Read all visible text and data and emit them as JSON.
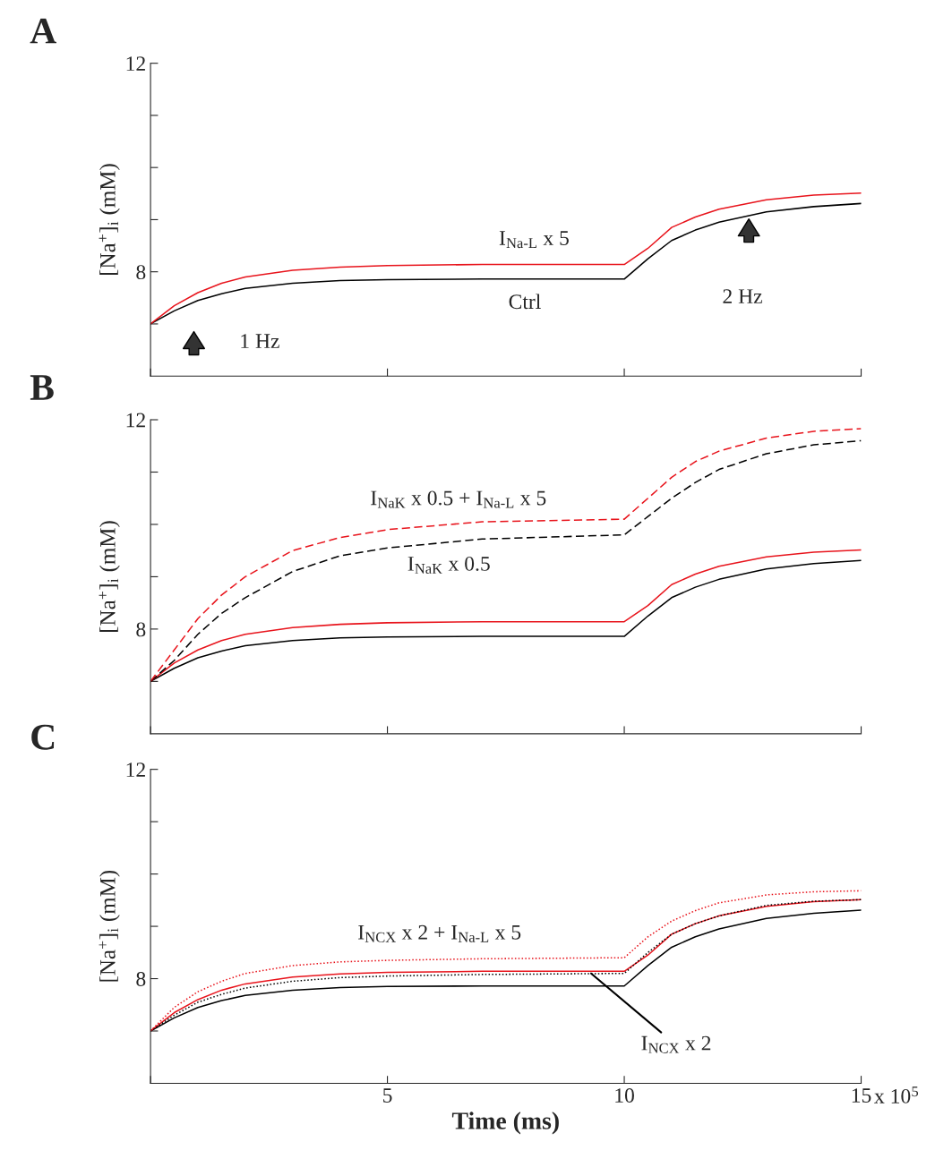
{
  "chart_data": [
    {
      "type": "line",
      "title": "A",
      "ylabel": "[Na$^{+}$]$_{i}$ (mM)",
      "xlim": [
        0,
        15
      ],
      "ylim": [
        6,
        12
      ],
      "xticks": [
        {
          "value": 0,
          "label": null
        },
        {
          "value": 5,
          "label": null
        },
        {
          "value": 10,
          "label": null
        },
        {
          "value": 15,
          "label": null
        }
      ],
      "yticks": [
        {
          "value": 7,
          "label": null
        },
        8,
        {
          "value": 9,
          "label": null
        },
        {
          "value": 10,
          "label": null
        },
        {
          "value": 11,
          "label": null
        },
        12
      ],
      "tick_labels": "y",
      "grid": false,
      "legend": false,
      "marker": "none",
      "series": [
        {
          "color": "#000000",
          "line_style": "solid",
          "x": [
            0,
            0.5,
            1,
            1.5,
            2,
            3,
            4,
            5,
            7,
            10,
            10.5,
            11,
            11.5,
            12,
            13,
            14,
            15
          ],
          "values": [
            7.0,
            7.25,
            7.45,
            7.58,
            7.68,
            7.78,
            7.83,
            7.85,
            7.86,
            7.86,
            8.25,
            8.6,
            8.8,
            8.95,
            9.15,
            9.25,
            9.31
          ]
        },
        {
          "color": "#e8141c",
          "line_style": "solid",
          "x": [
            0,
            0.5,
            1,
            1.5,
            2,
            3,
            4,
            5,
            7,
            10,
            10.5,
            11,
            11.5,
            12,
            13,
            14,
            15
          ],
          "values": [
            7.0,
            7.35,
            7.6,
            7.78,
            7.9,
            8.03,
            8.09,
            8.12,
            8.14,
            8.14,
            8.45,
            8.85,
            9.05,
            9.2,
            9.38,
            9.47,
            9.51
          ]
        }
      ],
      "annotations": [
        {
          "text": "I$_{Na-L}$ x 5",
          "x": 8.1,
          "y": 8.14
        },
        {
          "text": "Ctrl",
          "x": 7.9,
          "y": 7.86
        },
        "1 Hz",
        "2 Hz"
      ]
    },
    {
      "type": "line",
      "title": "B",
      "ylabel": "[Na$^{+}$]$_{i}$ (mM)",
      "xlim": [
        0,
        15
      ],
      "ylim": [
        6,
        12
      ],
      "xticks": [
        {
          "value": 0,
          "label": null
        },
        {
          "value": 5,
          "label": null
        },
        {
          "value": 10,
          "label": null
        },
        {
          "value": 15,
          "label": null
        }
      ],
      "yticks": [
        {
          "value": 7,
          "label": null
        },
        8,
        {
          "value": 9,
          "label": null
        },
        {
          "value": 10,
          "label": null
        },
        {
          "value": 11,
          "label": null
        },
        12
      ],
      "tick_labels": "y",
      "grid": false,
      "legend": false,
      "marker": "none",
      "series": [
        {
          "color": "#000000",
          "line_style": "solid",
          "x": [
            0,
            0.5,
            1,
            1.5,
            2,
            3,
            4,
            5,
            7,
            10,
            10.5,
            11,
            11.5,
            12,
            13,
            14,
            15
          ],
          "values": [
            7.0,
            7.25,
            7.45,
            7.58,
            7.68,
            7.78,
            7.83,
            7.85,
            7.86,
            7.86,
            8.25,
            8.6,
            8.8,
            8.95,
            9.15,
            9.25,
            9.31
          ]
        },
        {
          "color": "#e8141c",
          "line_style": "solid",
          "x": [
            0,
            0.5,
            1,
            1.5,
            2,
            3,
            4,
            5,
            7,
            10,
            10.5,
            11,
            11.5,
            12,
            13,
            14,
            15
          ],
          "values": [
            7.0,
            7.35,
            7.6,
            7.78,
            7.9,
            8.03,
            8.09,
            8.12,
            8.14,
            8.14,
            8.45,
            8.85,
            9.05,
            9.2,
            9.38,
            9.47,
            9.51
          ]
        },
        {
          "color": "#000000",
          "line_style": "dashed",
          "x": [
            0,
            0.5,
            1,
            1.5,
            2,
            3,
            4,
            5,
            7,
            10,
            10.5,
            11,
            11.5,
            12,
            13,
            14,
            15
          ],
          "values": [
            7.0,
            7.4,
            7.9,
            8.3,
            8.6,
            9.1,
            9.4,
            9.55,
            9.72,
            9.8,
            10.15,
            10.5,
            10.8,
            11.05,
            11.35,
            11.52,
            11.6
          ]
        },
        {
          "color": "#e8141c",
          "line_style": "dashed",
          "x": [
            0,
            0.5,
            1,
            1.5,
            2,
            3,
            4,
            5,
            7,
            10,
            10.5,
            11,
            11.5,
            12,
            13,
            14,
            15
          ],
          "values": [
            7.0,
            7.6,
            8.2,
            8.65,
            9.0,
            9.5,
            9.75,
            9.9,
            10.05,
            10.1,
            10.5,
            10.9,
            11.2,
            11.4,
            11.65,
            11.78,
            11.83
          ]
        }
      ],
      "annotations": [
        {
          "text": "I$_{NaK}$ x 0.5 + I$_{Na-L}$ x 5",
          "x": 6.5,
          "y": 10.0
        },
        {
          "text": "I$_{NaK}$ x 0.5",
          "x": 6.3,
          "y": 9.68
        }
      ]
    },
    {
      "type": "line",
      "title": "C",
      "ylabel": "[Na$^{+}$]$_{i}$ (mM)",
      "xlabel": "Time (ms)",
      "xlim": [
        0,
        15
      ],
      "ylim": [
        6,
        12
      ],
      "xticks": [
        {
          "value": 0,
          "label": null
        },
        5,
        10,
        15
      ],
      "yticks": [
        {
          "value": 7,
          "label": null
        },
        8,
        {
          "value": 9,
          "label": null
        },
        {
          "value": 10,
          "label": null
        },
        {
          "value": 11,
          "label": null
        },
        12
      ],
      "grid": false,
      "legend": false,
      "marker": "none",
      "series": [
        {
          "color": "#000000",
          "line_style": "solid",
          "x": [
            0,
            0.5,
            1,
            1.5,
            2,
            3,
            4,
            5,
            7,
            10,
            10.5,
            11,
            11.5,
            12,
            13,
            14,
            15
          ],
          "values": [
            7.0,
            7.25,
            7.45,
            7.58,
            7.68,
            7.78,
            7.83,
            7.85,
            7.86,
            7.86,
            8.25,
            8.6,
            8.8,
            8.95,
            9.15,
            9.25,
            9.31
          ]
        },
        {
          "color": "#e8141c",
          "line_style": "solid",
          "x": [
            0,
            0.5,
            1,
            1.5,
            2,
            3,
            4,
            5,
            7,
            10,
            10.5,
            11,
            11.5,
            12,
            13,
            14,
            15
          ],
          "values": [
            7.0,
            7.35,
            7.6,
            7.78,
            7.9,
            8.03,
            8.09,
            8.12,
            8.14,
            8.14,
            8.45,
            8.85,
            9.05,
            9.2,
            9.38,
            9.47,
            9.51
          ]
        },
        {
          "color": "#000000",
          "line_style": "dotted",
          "x": [
            0,
            0.5,
            1,
            1.5,
            2,
            3,
            4,
            5,
            7,
            10,
            10.5,
            11,
            11.5,
            12,
            13,
            14,
            15
          ],
          "values": [
            7.0,
            7.3,
            7.55,
            7.7,
            7.82,
            7.95,
            8.02,
            8.05,
            8.08,
            8.1,
            8.5,
            8.85,
            9.05,
            9.2,
            9.4,
            9.48,
            9.51
          ]
        },
        {
          "color": "#e8141c",
          "line_style": "dotted",
          "x": [
            0,
            0.5,
            1,
            1.5,
            2,
            3,
            4,
            5,
            7,
            10,
            10.5,
            11,
            11.5,
            12,
            13,
            14,
            15
          ],
          "values": [
            7.0,
            7.45,
            7.75,
            7.95,
            8.1,
            8.25,
            8.32,
            8.35,
            8.38,
            8.4,
            8.8,
            9.1,
            9.3,
            9.45,
            9.6,
            9.66,
            9.68
          ]
        }
      ],
      "annotations": [
        {
          "text": "I$_{NCX}$ x 2 + I$_{Na-L}$ x 5",
          "x": 6.1,
          "y": 8.38
        },
        {
          "text": "I$_{NCX}$ x 2",
          "x": 9.3,
          "y": 8.1
        },
        "x 10$^{5}$"
      ]
    }
  ]
}
